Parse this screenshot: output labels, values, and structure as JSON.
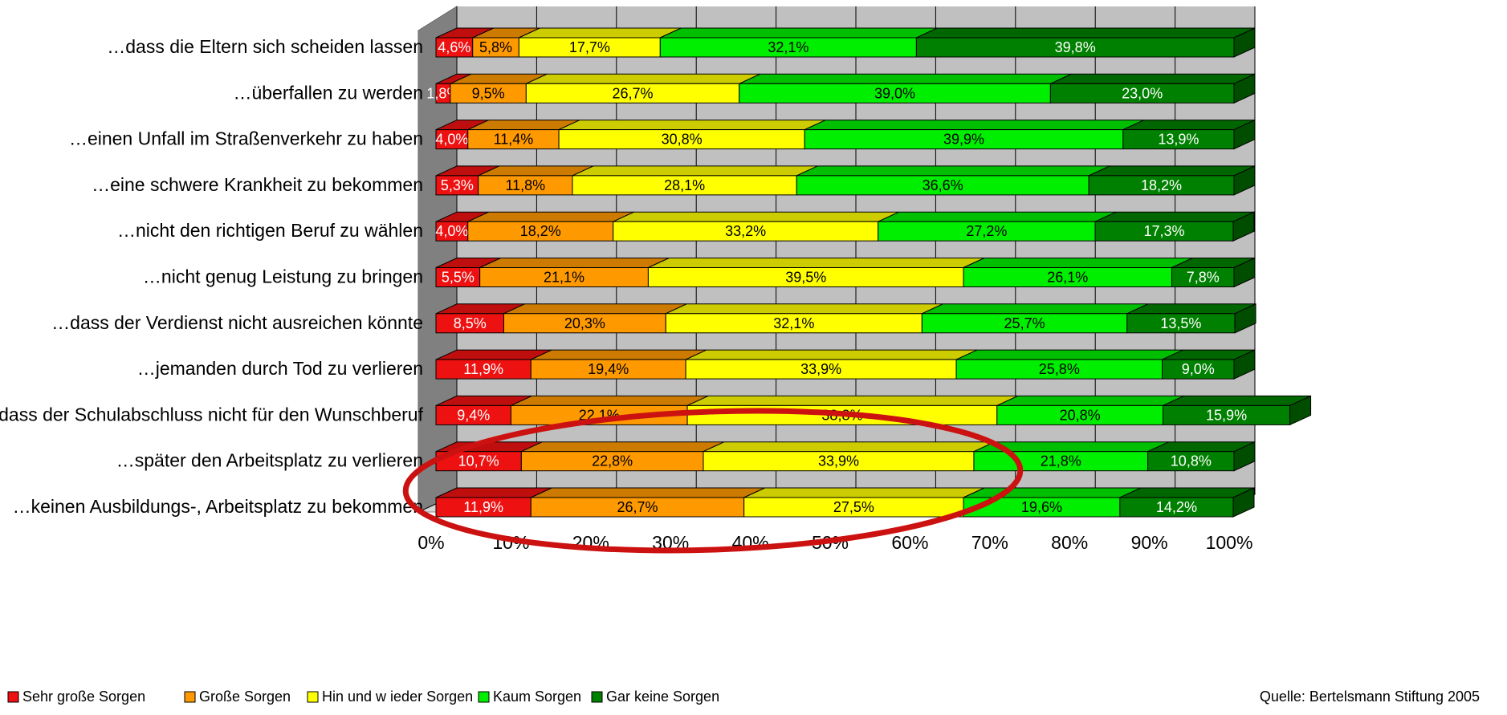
{
  "chart_data": {
    "type": "bar",
    "orientation": "horizontal",
    "stacked": "100%",
    "three_d": true,
    "grid": true,
    "legend_position": "bottom-left",
    "categories": [
      "…dass die Eltern sich scheiden lassen",
      "…überfallen zu werden",
      "…einen Unfall im Straßenverkehr zu haben",
      "…eine schwere Krankheit zu bekommen",
      "…nicht den richtigen Beruf zu wählen",
      "…nicht genug Leistung zu bringen",
      "…dass der Verdienst nicht ausreichen könnte",
      "…jemanden durch Tod zu verlieren",
      "…dass der Schulabschluss nicht für den Wunschberuf",
      "…später den Arbeitsplatz zu verlieren",
      "…keinen Ausbildungs-, Arbeitsplatz zu bekommen"
    ],
    "series": [
      {
        "name": "Sehr große Sorgen",
        "color": "#ee1111",
        "text_color": "#ffffff",
        "values": [
          4.6,
          1.8,
          4.0,
          5.3,
          4.0,
          5.5,
          8.5,
          11.9,
          9.4,
          10.7,
          11.9
        ]
      },
      {
        "name": "Große Sorgen",
        "color": "#ff9900",
        "text_color": "#000000",
        "values": [
          5.8,
          9.5,
          11.4,
          11.8,
          18.2,
          21.1,
          20.3,
          19.4,
          22.1,
          22.8,
          26.7
        ]
      },
      {
        "name": "Hin und w ieder Sorgen",
        "color": "#ffff00",
        "text_color": "#000000",
        "values": [
          17.7,
          26.7,
          30.8,
          28.1,
          33.2,
          39.5,
          32.1,
          33.9,
          38.8,
          33.9,
          27.5
        ]
      },
      {
        "name": "Kaum Sorgen",
        "color": "#00ee00",
        "text_color": "#000000",
        "values": [
          32.1,
          39.0,
          39.9,
          36.6,
          27.2,
          26.1,
          25.7,
          25.8,
          20.8,
          21.8,
          19.6
        ]
      },
      {
        "name": "Gar keine Sorgen",
        "color": "#008000",
        "text_color": "#ffffff",
        "values": [
          39.8,
          23.0,
          13.9,
          18.2,
          17.3,
          7.8,
          13.5,
          9.0,
          15.9,
          10.8,
          14.2
        ]
      }
    ],
    "xlim": [
      0,
      100
    ],
    "x_ticks": [
      "0%",
      "10%",
      "20%",
      "30%",
      "40%",
      "50%",
      "60%",
      "70%",
      "80%",
      "90%",
      "100%"
    ],
    "annotation": "red ellipse highlighting the last two categories",
    "annotation_color": "#cc1111"
  },
  "source": "Quelle: Bertelsmann Stiftung 2005"
}
